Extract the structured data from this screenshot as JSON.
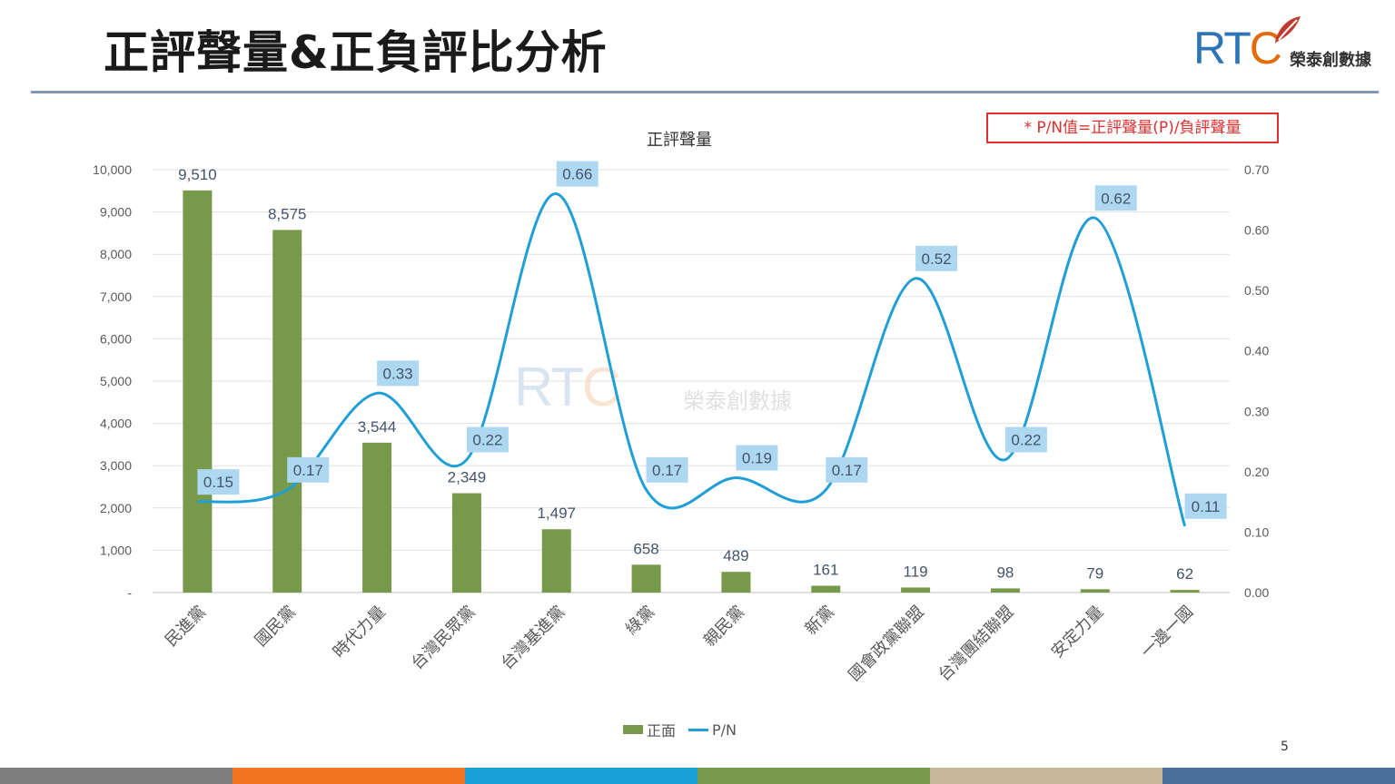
{
  "slide": {
    "title": "正評聲量&正負評比分析",
    "page_number": "5",
    "note": "* P/N值=正評聲量(P)/負評聲量"
  },
  "logo": {
    "letters_rt": "RT",
    "letter_c": "C",
    "name": "榮泰創數據"
  },
  "colors": {
    "bar": "#779a4a",
    "line": "#1f9fd6",
    "label_box": "#aed8f2",
    "label_text": "#44546a",
    "footer": [
      "#7f7f7f",
      "#f47521",
      "#1aa1d8",
      "#779a4a",
      "#c8b89a",
      "#4a6f9a"
    ]
  },
  "chart_data": {
    "type": "bar",
    "title": "正評聲量",
    "categories": [
      "民進黨",
      "國民黨",
      "時代力量",
      "台灣民眾黨",
      "台灣基進黨",
      "綠黨",
      "親民黨",
      "新黨",
      "國會政黨聯盟",
      "台灣團結聯盟",
      "安定力量",
      "一邊一國"
    ],
    "series": [
      {
        "name": "正面",
        "type": "bar",
        "axis": "left",
        "values": [
          9510,
          8575,
          3544,
          2349,
          1497,
          658,
          489,
          161,
          119,
          98,
          79,
          62
        ],
        "labels": [
          "9,510",
          "8,575",
          "3,544",
          "2,349",
          "1,497",
          "658",
          "489",
          "161",
          "119",
          "98",
          "79",
          "62"
        ]
      },
      {
        "name": "P/N",
        "type": "line",
        "axis": "right",
        "values": [
          0.15,
          0.17,
          0.33,
          0.22,
          0.66,
          0.17,
          0.19,
          0.17,
          0.52,
          0.22,
          0.62,
          0.11
        ],
        "labels": [
          "0.15",
          "0.17",
          "0.33",
          "0.22",
          "0.66",
          "0.17",
          "0.19",
          "0.17",
          "0.52",
          "0.22",
          "0.62",
          "0.11"
        ]
      }
    ],
    "ylim_left": [
      0,
      10000
    ],
    "ylim_right": [
      0,
      0.7
    ],
    "yticks_left": [
      "-",
      "1,000",
      "2,000",
      "3,000",
      "4,000",
      "5,000",
      "6,000",
      "7,000",
      "8,000",
      "9,000",
      "10,000"
    ],
    "yticks_right": [
      "0.00",
      "0.10",
      "0.20",
      "0.30",
      "0.40",
      "0.50",
      "0.60",
      "0.70"
    ],
    "grid": true,
    "legend": "bottom",
    "legend_items": [
      "正面",
      "P/N"
    ]
  }
}
